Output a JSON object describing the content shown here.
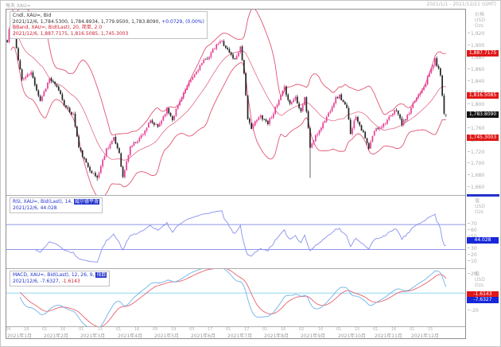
{
  "window": {
    "title_left": "每天 XAU=",
    "title_right": "2021/1/1 - 2021/12/21 (GMT)"
  },
  "colors": {
    "up_candle": "#e63e96",
    "down_candle": "#222222",
    "bollinger": "#e05573",
    "rsi_line": "#8892ee",
    "rsi_level": "#6b74e0",
    "macd_line": "#6fb3e8",
    "macd_signal": "#e8606e",
    "macd_zero": "#90d8f0",
    "badge_red": "#e01818",
    "badge_blue": "#1828d8",
    "badge_black": "#111111",
    "text_blue": "#2233cc",
    "text_red": "#cc2233",
    "axis_text": "#a9a9a9"
  },
  "legend_main": {
    "line1": "Cndl, XAU=, Bid",
    "line2_ohlc": "2021/12/6, 1,784.5300, 1,784.8934, 1,779.9500, 1,783.8090, ",
    "line2_change": "+0.0729, (0.00%)",
    "line3": "BBand, XAU=, Bid(Last), 20, 简单, 2.0",
    "line4": "2021/12/6, 1,887.7175, 1,816.5085, 1,745.3003"
  },
  "legend_rsi": {
    "line1_prefix": "RSI, XAU=, Bid(Last), 14, ",
    "line1_highlight": "威尔德平滑",
    "line2": "2021/12/6, 44.028"
  },
  "legend_macd": {
    "line1_prefix": "MACD, XAU=, Bid(Last), 12, 26, 9, ",
    "line1_highlight": "指数",
    "line2_macd": "2021/12/6, -7.6327, ",
    "line2_signal": "-1.6143"
  },
  "axis": {
    "main_header": "价格\nUSD\nOzs",
    "rsi_header": "值\nUSD\nOzs",
    "macd_header": "值\nUSD\nOzs",
    "main_ticks": [
      {
        "label": "1,920",
        "value": 1920
      },
      {
        "label": "1,900",
        "value": 1900
      },
      {
        "label": "1,880",
        "value": 1880
      },
      {
        "label": "1,860",
        "value": 1860
      },
      {
        "label": "1,840",
        "value": 1840
      },
      {
        "label": "1,820",
        "value": 1820
      },
      {
        "label": "1,800",
        "value": 1800
      },
      {
        "label": "1,780",
        "value": 1780
      },
      {
        "label": "1,760",
        "value": 1760
      },
      {
        "label": "1,740",
        "value": 1740
      },
      {
        "label": "1,720",
        "value": 1720
      },
      {
        "label": "1,700",
        "value": 1700
      },
      {
        "label": "1,680",
        "value": 1680
      },
      {
        "label": "1,660",
        "value": 1660
      }
    ],
    "rsi_ticks": [
      {
        "label": "70",
        "value": 70
      },
      {
        "label": "60",
        "value": 60
      },
      {
        "label": "50",
        "value": 50
      },
      {
        "label": "40",
        "value": 40
      },
      {
        "label": "30",
        "value": 30
      },
      {
        "label": "20",
        "value": 20
      },
      {
        "label": "10",
        "value": 10
      }
    ],
    "macd_ticks": [
      {
        "label": "20",
        "value": 20
      },
      {
        "label": "-20",
        "value": -20
      }
    ],
    "main_badges": [
      {
        "label": "1,887.7175",
        "value": 1887.7175,
        "color": "badge_red"
      },
      {
        "label": "1,816.5085",
        "value": 1816.5085,
        "color": "badge_red"
      },
      {
        "label": "1,783.8090",
        "value": 1783.809,
        "color": "badge_black"
      },
      {
        "label": "1,745.3003",
        "value": 1745.3003,
        "color": "badge_red"
      }
    ],
    "rsi_badges": [
      {
        "label": "44.028",
        "value": 44.028,
        "color": "badge_blue"
      }
    ],
    "macd_badges": [
      {
        "label": "-1.6143",
        "value": -1.6143,
        "color": "badge_red"
      },
      {
        "label": "-7.6327",
        "value": -7.6327,
        "color": "badge_blue"
      }
    ]
  },
  "xaxis": {
    "day_labels": [
      "04",
      "18",
      "01",
      "16",
      "01",
      "15",
      "01",
      "16",
      "05",
      "19",
      "03",
      "17",
      "01",
      "17",
      "01",
      "16",
      "02",
      "16",
      "01",
      "15",
      "01",
      "16",
      "01",
      "15"
    ],
    "month_labels": [
      "2021年1月",
      "2021年2月",
      "2021年3月",
      "2021年4月",
      "2021年5月",
      "2021年6月",
      "2021年7月",
      "2021年8月",
      "2021年9月",
      "2021年10月",
      "2021年11月",
      "2021年12月"
    ]
  },
  "chart_data": {
    "type": "candlestick+indicators",
    "title": "每天 XAU= Bid, 2021/1/1 - 2021/12/21 (GMT)",
    "points": 240,
    "seed": 11,
    "noise": 3.0,
    "panes": {
      "main": {
        "ylim": [
          1648,
          1962
        ],
        "bollinger": {
          "period": 20,
          "type": "简单",
          "mult": 2.0
        },
        "last_bar": {
          "date": "2021/12/6",
          "open": 1784.53,
          "high": 1784.8934,
          "low": 1779.95,
          "close": 1783.809,
          "change": 0.0729,
          "change_pct": "0.00%"
        },
        "bollinger_last": {
          "upper": 1887.7175,
          "middle": 1816.5085,
          "lower": 1745.3003
        },
        "anchors": [
          [
            0,
            1907
          ],
          [
            2,
            1950
          ],
          [
            8,
            1843
          ],
          [
            13,
            1855
          ],
          [
            18,
            1808
          ],
          [
            23,
            1845
          ],
          [
            28,
            1826
          ],
          [
            32,
            1795
          ],
          [
            36,
            1784
          ],
          [
            39,
            1728
          ],
          [
            43,
            1701
          ],
          [
            47,
            1683
          ],
          [
            49,
            1677
          ],
          [
            54,
            1726
          ],
          [
            58,
            1743
          ],
          [
            61,
            1720
          ],
          [
            63,
            1677
          ],
          [
            67,
            1730
          ],
          [
            72,
            1744
          ],
          [
            78,
            1772
          ],
          [
            82,
            1763
          ],
          [
            87,
            1793
          ],
          [
            90,
            1777
          ],
          [
            95,
            1815
          ],
          [
            100,
            1842
          ],
          [
            105,
            1867
          ],
          [
            110,
            1884
          ],
          [
            115,
            1905
          ],
          [
            117,
            1908
          ],
          [
            121,
            1889
          ],
          [
            124,
            1877
          ],
          [
            127,
            1899
          ],
          [
            129,
            1856
          ],
          [
            131,
            1774
          ],
          [
            133,
            1763
          ],
          [
            138,
            1782
          ],
          [
            142,
            1770
          ],
          [
            147,
            1800
          ],
          [
            151,
            1829
          ],
          [
            154,
            1802
          ],
          [
            157,
            1814
          ],
          [
            160,
            1790
          ],
          [
            162,
            1814
          ],
          [
            164,
            1762
          ],
          [
            165,
            1729
          ],
          [
            169,
            1752
          ],
          [
            174,
            1780
          ],
          [
            179,
            1812
          ],
          [
            181,
            1816
          ],
          [
            185,
            1794
          ],
          [
            187,
            1754
          ],
          [
            190,
            1782
          ],
          [
            194,
            1752
          ],
          [
            197,
            1726
          ],
          [
            200,
            1757
          ],
          [
            205,
            1768
          ],
          [
            209,
            1781
          ],
          [
            212,
            1793
          ],
          [
            215,
            1768
          ],
          [
            219,
            1786
          ],
          [
            222,
            1808
          ],
          [
            224,
            1818
          ],
          [
            228,
            1838
          ],
          [
            231,
            1862
          ],
          [
            233,
            1877
          ],
          [
            236,
            1852
          ],
          [
            238,
            1786
          ],
          [
            239,
            1783.81
          ]
        ],
        "wick_events": [
          {
            "i": 49,
            "low": 1672
          },
          {
            "i": 165,
            "low": 1677
          }
        ]
      },
      "rsi": {
        "ylim": [
          0,
          116
        ],
        "period": 14,
        "smoothing": "威尔德平滑",
        "levels": [
          30,
          70
        ],
        "last": 44.028
      },
      "macd": {
        "ylim": [
          -36,
          26
        ],
        "fast": 12,
        "slow": 26,
        "signal": 9,
        "ma_type": "指数",
        "last_macd": -7.6327,
        "last_signal": -1.6143
      }
    }
  }
}
